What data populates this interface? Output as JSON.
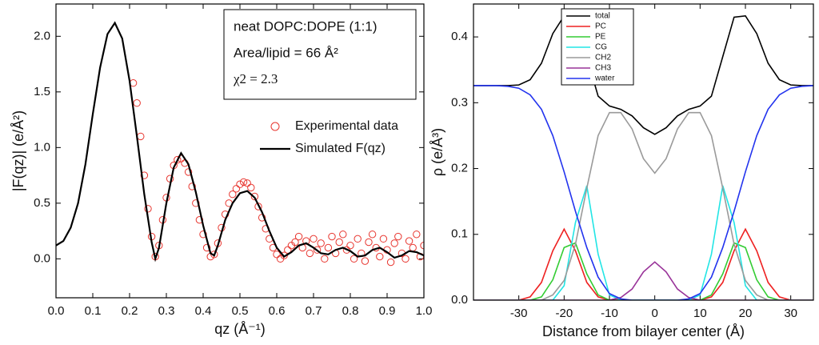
{
  "chart_data": [
    {
      "type": "line",
      "xlabel": "qz (Å⁻¹)",
      "ylabel": "|F(qz)| (e/Å²)",
      "annotations": [
        "neat DOPC:DOPE (1:1)",
        "Area/lipid = 66 Å²",
        "χ2 = 2.3"
      ],
      "xlim": [
        0,
        1
      ],
      "ylim": [
        -0.35,
        2.29
      ],
      "xticks": [
        {
          "value": 0,
          "label": "0.0"
        },
        {
          "value": 0.1,
          "label": "0.1"
        },
        {
          "value": 0.2,
          "label": "0.2"
        },
        {
          "value": 0.3,
          "label": "0.3"
        },
        {
          "value": 0.4,
          "label": "0.4"
        },
        {
          "value": 0.5,
          "label": "0.5"
        },
        {
          "value": 0.6,
          "label": "0.6"
        },
        {
          "value": 0.7,
          "label": "0.7"
        },
        {
          "value": 0.8,
          "label": "0.8"
        },
        {
          "value": 0.9,
          "label": "0.9"
        },
        {
          "value": 1,
          "label": "1.0"
        }
      ],
      "yticks": [
        {
          "value": 0,
          "label": "0.0"
        },
        {
          "value": 0.5,
          "label": "0.5"
        },
        {
          "value": 1,
          "label": "1.0"
        },
        {
          "value": 1.5,
          "label": "1.5"
        },
        {
          "value": 2,
          "label": "2.0"
        }
      ],
      "series": [
        {
          "name": "Experimental data",
          "color": "#e8362f",
          "style": "markers",
          "x": [
            0.21,
            0.22,
            0.23,
            0.24,
            0.25,
            0.26,
            0.27,
            0.28,
            0.29,
            0.3,
            0.31,
            0.32,
            0.33,
            0.34,
            0.35,
            0.36,
            0.37,
            0.38,
            0.39,
            0.4,
            0.41,
            0.42,
            0.43,
            0.44,
            0.45,
            0.46,
            0.47,
            0.48,
            0.49,
            0.5,
            0.51,
            0.52,
            0.53,
            0.54,
            0.55,
            0.56,
            0.57,
            0.58,
            0.59,
            0.6,
            0.61,
            0.62,
            0.63,
            0.64,
            0.65,
            0.66,
            0.67,
            0.68,
            0.69,
            0.7,
            0.71,
            0.72,
            0.73,
            0.74,
            0.75,
            0.76,
            0.77,
            0.78,
            0.79,
            0.8,
            0.81,
            0.82,
            0.83,
            0.84,
            0.85,
            0.86,
            0.87,
            0.88,
            0.89,
            0.9,
            0.91,
            0.92,
            0.93,
            0.94,
            0.95,
            0.96,
            0.97,
            0.98,
            0.99,
            1
          ],
          "values": [
            1.58,
            1.4,
            1.1,
            0.75,
            0.45,
            0.2,
            0.02,
            0.12,
            0.35,
            0.55,
            0.72,
            0.84,
            0.89,
            0.9,
            0.86,
            0.78,
            0.65,
            0.5,
            0.35,
            0.22,
            0.1,
            0.02,
            0.04,
            0.14,
            0.28,
            0.4,
            0.5,
            0.58,
            0.63,
            0.67,
            0.69,
            0.68,
            0.64,
            0.56,
            0.47,
            0.37,
            0.27,
            0.18,
            0.1,
            0.04,
            0,
            0.03,
            0.08,
            0.12,
            0.15,
            0.2,
            0.1,
            0.16,
            0.05,
            0.18,
            0.08,
            0.14,
            0,
            0.1,
            0.2,
            0.05,
            0.15,
            0.22,
            0.08,
            0.12,
            0,
            0.18,
            0.05,
            -0.02,
            0.15,
            0.22,
            0.1,
            0.02,
            0.18,
            0.08,
            -0.03,
            0.14,
            0.2,
            0.05,
            0,
            0.16,
            0.1,
            0.22,
            0.02,
            0.12
          ]
        },
        {
          "name": "Simulated F(qz)",
          "color": "#000000",
          "style": "line",
          "x": [
            0,
            0.02,
            0.04,
            0.06,
            0.08,
            0.1,
            0.12,
            0.14,
            0.16,
            0.18,
            0.2,
            0.22,
            0.24,
            0.26,
            0.27,
            0.28,
            0.3,
            0.32,
            0.34,
            0.36,
            0.38,
            0.4,
            0.42,
            0.43,
            0.44,
            0.46,
            0.48,
            0.5,
            0.52,
            0.54,
            0.56,
            0.58,
            0.6,
            0.62,
            0.64,
            0.66,
            0.68,
            0.7,
            0.72,
            0.74,
            0.76,
            0.78,
            0.8,
            0.82,
            0.84,
            0.86,
            0.88,
            0.9,
            0.92,
            0.94,
            0.96,
            0.98,
            1
          ],
          "values": [
            0.12,
            0.16,
            0.28,
            0.5,
            0.85,
            1.3,
            1.72,
            2.02,
            2.12,
            1.98,
            1.6,
            1.1,
            0.58,
            0.15,
            0,
            0.1,
            0.5,
            0.82,
            0.95,
            0.85,
            0.6,
            0.3,
            0.05,
            0.03,
            0.12,
            0.35,
            0.5,
            0.59,
            0.61,
            0.55,
            0.42,
            0.25,
            0.1,
            0.02,
            0.06,
            0.12,
            0.14,
            0.1,
            0.05,
            0.04,
            0.08,
            0.1,
            0.07,
            0.02,
            0.03,
            0.08,
            0.1,
            0.06,
            0.01,
            0.03,
            0.07,
            0.06,
            0.03
          ]
        }
      ]
    },
    {
      "type": "line",
      "xlabel": "Distance from bilayer center (Å)",
      "ylabel": "ρ (e/Å³)",
      "xlim": [
        -40,
        35
      ],
      "ylim": [
        0,
        0.45
      ],
      "xticks": [
        -30,
        -20,
        -10,
        0,
        10,
        20,
        30
      ],
      "yticks": [
        {
          "value": 0,
          "label": "0.0"
        },
        {
          "value": 0.1,
          "label": "0.1"
        },
        {
          "value": 0.2,
          "label": "0.2"
        },
        {
          "value": 0.3,
          "label": "0.3"
        },
        {
          "value": 0.4,
          "label": "0.4"
        }
      ],
      "x": [
        -40,
        -37.5,
        -35,
        -32.5,
        -30,
        -27.5,
        -25,
        -22.5,
        -20,
        -17.5,
        -15,
        -12.5,
        -10,
        -7.5,
        -5,
        -2.5,
        0,
        2.5,
        5,
        7.5,
        10,
        12.5,
        15,
        17.5,
        20,
        22.5,
        25,
        27.5,
        30,
        32.5,
        35
      ],
      "series": [
        {
          "name": "total",
          "color": "#000000",
          "style": "line",
          "values": [
            0.326,
            0.326,
            0.326,
            0.326,
            0.327,
            0.335,
            0.36,
            0.405,
            0.432,
            0.43,
            0.37,
            0.31,
            0.295,
            0.29,
            0.28,
            0.262,
            0.252,
            0.262,
            0.28,
            0.29,
            0.295,
            0.31,
            0.37,
            0.43,
            0.432,
            0.405,
            0.36,
            0.335,
            0.327,
            0.326,
            0.326
          ]
        },
        {
          "name": "PC",
          "color": "#ee2222",
          "style": "line",
          "values": [
            0,
            0,
            0,
            0,
            0,
            0.005,
            0.027,
            0.075,
            0.108,
            0.075,
            0.027,
            0.005,
            0,
            0,
            0,
            0,
            0,
            0,
            0,
            0,
            0,
            0.005,
            0.027,
            0.075,
            0.108,
            0.075,
            0.027,
            0.005,
            0,
            0,
            0
          ]
        },
        {
          "name": "PE",
          "color": "#33cc33",
          "style": "line",
          "values": [
            0,
            0,
            0,
            0,
            0,
            0,
            0.005,
            0.031,
            0.08,
            0.087,
            0.04,
            0.008,
            0,
            0,
            0,
            0,
            0,
            0,
            0,
            0,
            0,
            0.008,
            0.04,
            0.087,
            0.08,
            0.031,
            0.005,
            0,
            0,
            0,
            0
          ]
        },
        {
          "name": "CG",
          "color": "#22e5e5",
          "style": "line",
          "values": [
            0,
            0,
            0,
            0,
            0,
            0,
            0,
            0,
            0.022,
            0.118,
            0.174,
            0.07,
            0.008,
            0,
            0,
            0,
            0,
            0,
            0,
            0,
            0.008,
            0.07,
            0.174,
            0.118,
            0.022,
            0,
            0,
            0,
            0,
            0,
            0
          ]
        },
        {
          "name": "CH2",
          "color": "#9a9a9a",
          "style": "line",
          "values": [
            0,
            0,
            0,
            0,
            0,
            0,
            0,
            0.008,
            0.03,
            0.085,
            0.17,
            0.25,
            0.285,
            0.285,
            0.26,
            0.215,
            0.193,
            0.215,
            0.26,
            0.285,
            0.285,
            0.25,
            0.17,
            0.085,
            0.03,
            0.008,
            0,
            0,
            0,
            0,
            0
          ]
        },
        {
          "name": "CH3",
          "color": "#993399",
          "style": "line",
          "values": [
            0,
            0,
            0,
            0,
            0,
            0,
            0,
            0,
            0,
            0,
            0,
            0,
            0,
            0.004,
            0.017,
            0.043,
            0.058,
            0.043,
            0.017,
            0.004,
            0,
            0,
            0,
            0,
            0,
            0,
            0,
            0,
            0,
            0,
            0
          ]
        },
        {
          "name": "water",
          "color": "#2233ee",
          "style": "line",
          "values": [
            0.326,
            0.326,
            0.326,
            0.325,
            0.322,
            0.312,
            0.29,
            0.25,
            0.195,
            0.135,
            0.08,
            0.035,
            0.01,
            0.002,
            0,
            0,
            0,
            0,
            0,
            0.002,
            0.01,
            0.035,
            0.08,
            0.135,
            0.195,
            0.25,
            0.29,
            0.312,
            0.322,
            0.325,
            0.326
          ]
        }
      ]
    }
  ]
}
